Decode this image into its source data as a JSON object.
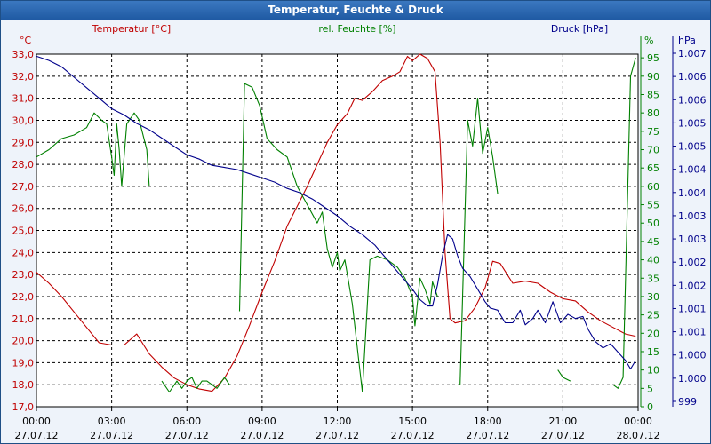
{
  "chart_data": {
    "type": "line",
    "title": "Temperatur, Feuchte & Druck",
    "x_ticks": [
      {
        "time": "00:00",
        "date": "27.07.12"
      },
      {
        "time": "03:00",
        "date": "27.07.12"
      },
      {
        "time": "06:00",
        "date": "27.07.12"
      },
      {
        "time": "09:00",
        "date": "27.07.12"
      },
      {
        "time": "12:00",
        "date": "27.07.12"
      },
      {
        "time": "15:00",
        "date": "27.07.12"
      },
      {
        "time": "18:00",
        "date": "27.07.12"
      },
      {
        "time": "21:00",
        "date": "27.07.12"
      },
      {
        "time": "00:00",
        "date": "28.07.12"
      }
    ],
    "x_range_hours": [
      0,
      24
    ],
    "axes": {
      "temperature": {
        "label": "Temperatur [°C]",
        "unit": "°C",
        "range": [
          17,
          33
        ],
        "color": "#c00000",
        "ticks": [
          "17,0",
          "18,0",
          "19,0",
          "20,0",
          "21,0",
          "22,0",
          "23,0",
          "24,0",
          "25,0",
          "26,0",
          "27,0",
          "28,0",
          "29,0",
          "30,0",
          "31,0",
          "32,0",
          "33,0"
        ]
      },
      "humidity": {
        "label": "rel. Feuchte [%]",
        "unit": "%",
        "range": [
          0,
          96
        ],
        "color": "#008000",
        "ticks": [
          "0",
          "5",
          "10",
          "15",
          "20",
          "25",
          "30",
          "35",
          "40",
          "45",
          "50",
          "55",
          "60",
          "65",
          "70",
          "75",
          "80",
          "85",
          "90",
          "95"
        ]
      },
      "pressure": {
        "label": "Druck [hPa]",
        "unit": "hPa",
        "range": [
          998.6,
          1007.0
        ],
        "color": "#00008b",
        "ticks": [
          "999",
          "1.000",
          "1.000",
          "1.001",
          "1.001",
          "1.002",
          "1.002",
          "1.003",
          "1.003",
          "1.004",
          "1.004",
          "1.005",
          "1.005",
          "1.006",
          "1.006",
          "1.007"
        ]
      }
    },
    "series": [
      {
        "name": "Temperatur",
        "axis": "temperature",
        "color": "#c00000",
        "points": [
          [
            0,
            23.1
          ],
          [
            0.5,
            22.6
          ],
          [
            1,
            22.0
          ],
          [
            1.5,
            21.3
          ],
          [
            2,
            20.6
          ],
          [
            2.5,
            19.9
          ],
          [
            3,
            19.8
          ],
          [
            3.5,
            19.8
          ],
          [
            4,
            20.3
          ],
          [
            4.5,
            19.4
          ],
          [
            5,
            18.8
          ],
          [
            5.5,
            18.3
          ],
          [
            6,
            18.0
          ],
          [
            6.5,
            17.8
          ],
          [
            7,
            17.7
          ],
          [
            7.5,
            18.3
          ],
          [
            8,
            19.3
          ],
          [
            8.5,
            20.7
          ],
          [
            9,
            22.2
          ],
          [
            9.5,
            23.6
          ],
          [
            10,
            25.2
          ],
          [
            10.4,
            26.1
          ],
          [
            10.8,
            27.0
          ],
          [
            11.2,
            28.0
          ],
          [
            11.6,
            29.0
          ],
          [
            12,
            29.8
          ],
          [
            12.4,
            30.3
          ],
          [
            12.7,
            31.0
          ],
          [
            13,
            30.9
          ],
          [
            13.4,
            31.3
          ],
          [
            13.8,
            31.8
          ],
          [
            14.2,
            32.0
          ],
          [
            14.5,
            32.2
          ],
          [
            14.8,
            32.9
          ],
          [
            15,
            32.7
          ],
          [
            15.3,
            33.0
          ],
          [
            15.6,
            32.8
          ],
          [
            15.9,
            32.2
          ],
          [
            16.1,
            29.0
          ],
          [
            16.3,
            24.0
          ],
          [
            16.5,
            21.0
          ],
          [
            16.7,
            20.8
          ],
          [
            17.1,
            20.9
          ],
          [
            17.5,
            21.5
          ],
          [
            17.9,
            22.4
          ],
          [
            18.2,
            23.6
          ],
          [
            18.5,
            23.5
          ],
          [
            19,
            22.6
          ],
          [
            19.5,
            22.7
          ],
          [
            20,
            22.6
          ],
          [
            20.5,
            22.2
          ],
          [
            21,
            21.9
          ],
          [
            21.5,
            21.8
          ],
          [
            22,
            21.3
          ],
          [
            22.5,
            20.9
          ],
          [
            23,
            20.6
          ],
          [
            23.5,
            20.3
          ],
          [
            23.9,
            20.2
          ]
        ]
      },
      {
        "name": "rel. Feuchte",
        "axis": "humidity",
        "color": "#008000",
        "segments": [
          [
            [
              0,
              68
            ],
            [
              0.5,
              70
            ],
            [
              1,
              73
            ],
            [
              1.5,
              74
            ],
            [
              2,
              76
            ],
            [
              2.3,
              80
            ],
            [
              2.6,
              78
            ],
            [
              2.8,
              77
            ],
            [
              3,
              68
            ],
            [
              3.1,
              63
            ],
            [
              3.2,
              77
            ],
            [
              3.3,
              70
            ],
            [
              3.4,
              60
            ],
            [
              3.6,
              77
            ],
            [
              3.9,
              80
            ],
            [
              4.1,
              78
            ],
            [
              4.4,
              70
            ],
            [
              4.5,
              60
            ]
          ],
          [
            [
              5,
              7
            ],
            [
              5.3,
              4
            ],
            [
              5.6,
              7
            ],
            [
              5.8,
              5
            ],
            [
              6,
              7
            ],
            [
              6.2,
              8
            ],
            [
              6.4,
              5
            ],
            [
              6.6,
              7
            ],
            [
              6.8,
              7
            ],
            [
              7,
              6
            ],
            [
              7.2,
              5
            ],
            [
              7.5,
              8
            ],
            [
              7.7,
              6
            ]
          ],
          [
            [
              8.1,
              26
            ],
            [
              8.3,
              88
            ],
            [
              8.6,
              87
            ],
            [
              8.9,
              82
            ],
            [
              9.2,
              73
            ],
            [
              9.6,
              70
            ],
            [
              10,
              68
            ],
            [
              10.4,
              60
            ],
            [
              10.8,
              55
            ],
            [
              11.2,
              50
            ],
            [
              11.4,
              53
            ],
            [
              11.6,
              43
            ],
            [
              11.8,
              38
            ],
            [
              12,
              42
            ],
            [
              12.1,
              37
            ],
            [
              12.3,
              40
            ],
            [
              12.5,
              32
            ],
            [
              12.6,
              28
            ],
            [
              13,
              4
            ],
            [
              13.3,
              40
            ],
            [
              13.6,
              41
            ],
            [
              14,
              40
            ],
            [
              14.4,
              38
            ],
            [
              14.7,
              35
            ],
            [
              15,
              30
            ],
            [
              15.1,
              22
            ],
            [
              15.3,
              35
            ],
            [
              15.5,
              32
            ],
            [
              15.7,
              28
            ],
            [
              15.8,
              34
            ],
            [
              16,
              30
            ]
          ],
          [
            [
              16.9,
              6
            ],
            [
              17.2,
              78
            ],
            [
              17.4,
              71
            ],
            [
              17.6,
              84
            ],
            [
              17.8,
              69
            ],
            [
              18,
              76
            ],
            [
              18.2,
              68
            ],
            [
              18.4,
              58
            ]
          ],
          [
            [
              20.8,
              10
            ],
            [
              21,
              8
            ],
            [
              21.3,
              7
            ]
          ],
          [
            [
              23,
              6
            ],
            [
              23.2,
              5
            ],
            [
              23.4,
              8
            ],
            [
              23.7,
              90
            ],
            [
              23.9,
              95
            ]
          ]
        ]
      },
      {
        "name": "Druck",
        "axis": "pressure",
        "color": "#00008b",
        "points": [
          [
            0,
            1006.95
          ],
          [
            0.5,
            1006.85
          ],
          [
            1,
            1006.7
          ],
          [
            1.5,
            1006.45
          ],
          [
            2,
            1006.2
          ],
          [
            2.5,
            1005.95
          ],
          [
            3,
            1005.7
          ],
          [
            3.5,
            1005.55
          ],
          [
            4,
            1005.35
          ],
          [
            4.5,
            1005.2
          ],
          [
            5,
            1005.0
          ],
          [
            5.5,
            1004.8
          ],
          [
            6,
            1004.6
          ],
          [
            6.5,
            1004.5
          ],
          [
            7,
            1004.35
          ],
          [
            7.5,
            1004.3
          ],
          [
            8,
            1004.25
          ],
          [
            8.5,
            1004.15
          ],
          [
            9,
            1004.05
          ],
          [
            9.5,
            1003.95
          ],
          [
            10,
            1003.8
          ],
          [
            10.5,
            1003.7
          ],
          [
            11,
            1003.55
          ],
          [
            11.5,
            1003.35
          ],
          [
            12,
            1003.15
          ],
          [
            12.5,
            1002.9
          ],
          [
            13,
            1002.7
          ],
          [
            13.5,
            1002.45
          ],
          [
            14,
            1002.1
          ],
          [
            14.5,
            1001.75
          ],
          [
            15,
            1001.4
          ],
          [
            15.3,
            1001.15
          ],
          [
            15.6,
            1001.0
          ],
          [
            15.8,
            1001.0
          ],
          [
            16,
            1001.5
          ],
          [
            16.2,
            1002.2
          ],
          [
            16.4,
            1002.7
          ],
          [
            16.6,
            1002.6
          ],
          [
            16.8,
            1002.2
          ],
          [
            17,
            1001.9
          ],
          [
            17.3,
            1001.7
          ],
          [
            17.6,
            1001.4
          ],
          [
            17.9,
            1001.1
          ],
          [
            18.1,
            1000.95
          ],
          [
            18.4,
            1000.9
          ],
          [
            18.7,
            1000.6
          ],
          [
            19,
            1000.6
          ],
          [
            19.3,
            1000.9
          ],
          [
            19.5,
            1000.55
          ],
          [
            19.8,
            1000.7
          ],
          [
            20,
            1000.9
          ],
          [
            20.3,
            1000.6
          ],
          [
            20.6,
            1001.1
          ],
          [
            20.9,
            1000.6
          ],
          [
            21.2,
            1000.8
          ],
          [
            21.5,
            1000.7
          ],
          [
            21.8,
            1000.75
          ],
          [
            22,
            1000.45
          ],
          [
            22.3,
            1000.15
          ],
          [
            22.6,
            1000.0
          ],
          [
            22.9,
            1000.1
          ],
          [
            23.2,
            999.9
          ],
          [
            23.5,
            999.7
          ],
          [
            23.7,
            999.5
          ],
          [
            23.9,
            999.7
          ]
        ]
      }
    ],
    "grid": true
  }
}
